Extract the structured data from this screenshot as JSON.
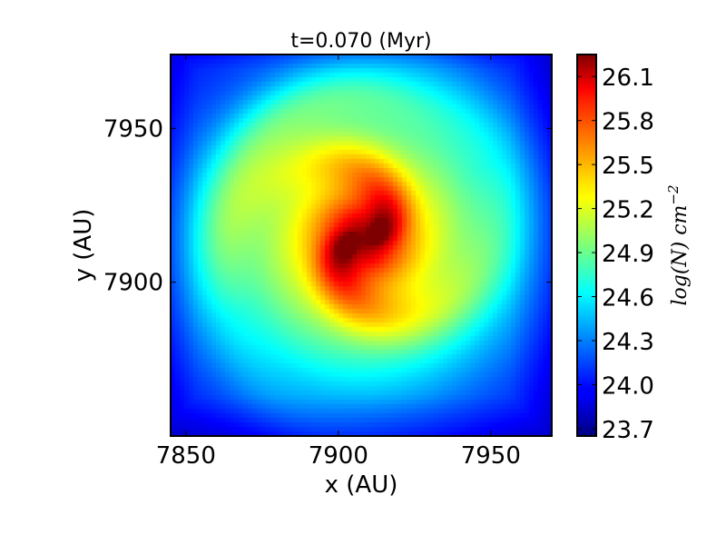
{
  "chart_data": {
    "type": "heatmap",
    "title": "t=0.070 (Myr)",
    "xlabel": "x (AU)",
    "ylabel": "y (AU)",
    "xlim": [
      7845,
      7970
    ],
    "ylim": [
      7850,
      7974
    ],
    "x_ticks": [
      7850,
      7900,
      7950
    ],
    "x_tick_labels": [
      "7850",
      "7900",
      "7950"
    ],
    "y_ticks": [
      7900,
      7950
    ],
    "y_tick_labels": [
      "7900",
      "7950"
    ],
    "colormap": "jet",
    "colorbar": {
      "label": "log(N) cm",
      "label_exponent": "−2",
      "range": [
        23.65,
        26.25
      ],
      "ticks": [
        26.1,
        25.8,
        25.5,
        25.2,
        24.9,
        24.6,
        24.3,
        24.0,
        23.7
      ],
      "tick_labels": [
        "26.1",
        "25.8",
        "25.5",
        "25.2",
        "24.9",
        "24.6",
        "24.3",
        "24.0",
        "23.7"
      ]
    },
    "field": {
      "description_free": true,
      "center": [
        7908,
        7914
      ],
      "peak": 26.2,
      "background": 23.85,
      "arms": 2
    }
  }
}
